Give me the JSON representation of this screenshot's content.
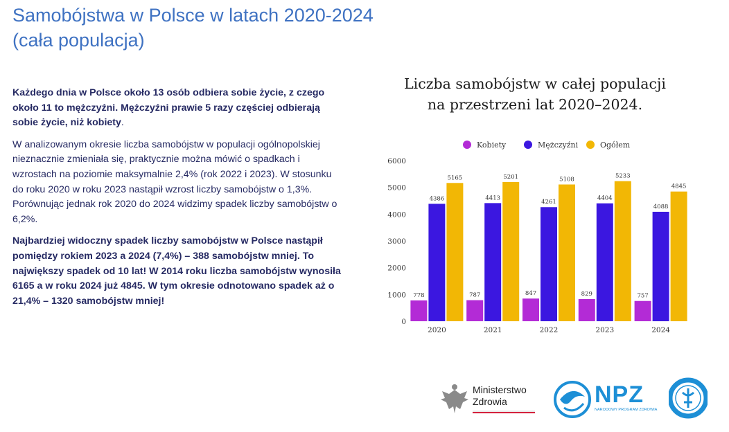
{
  "page": {
    "title_line1": "Samobójstwa w Polsce w latach 2020-2024",
    "title_line2": "(cała populacja)"
  },
  "text": {
    "p1_bold": "Każdego dnia w Polsce około 13 osób odbiera sobie życie, z czego około 11 to mężczyźni. Mężczyźni prawie 5 razy częściej odbierają sobie życie, niż kobiety",
    "p1_end": ".",
    "p2": "W analizowanym okresie liczba samobójstw w populacji ogólnopolskiej nieznacznie zmieniała się, praktycznie można mówić o spadkach i wzrostach na poziomie  maksymalnie 2,4% (rok  2022 i 2023). W stosunku do roku 2020 w roku 2023 nastąpił wzrost liczby samobójstw o 1,3%. Porównując jednak rok 2020 do 2024 widzimy spadek liczby samobójstw o 6,2%.",
    "p3": "Najbardziej widoczny spadek liczby samobójstw w Polsce nastąpił pomiędzy rokiem 2023 a 2024 (7,4%) – 388 samobójstw mniej. To największy spadek od 10 lat! W 2014 roku liczba samobójstw wynosiła 6165 a w roku 2024 już 4845. W tym okresie odnotowano spadek aż o 21,4% – 1320 samobójstw mniej!"
  },
  "chart_data": {
    "type": "bar",
    "title_line1": "Liczba samobójstw w całej populacji",
    "title_line2": "na przestrzeni lat 2020–2024.",
    "categories": [
      "2020",
      "2021",
      "2022",
      "2023",
      "2024"
    ],
    "series": [
      {
        "name": "Kobiety",
        "color": "#b32bd6",
        "values": [
          778,
          787,
          847,
          829,
          757
        ]
      },
      {
        "name": "Mężczyźni",
        "color": "#3b17e0",
        "values": [
          4386,
          4413,
          4261,
          4404,
          4088
        ]
      },
      {
        "name": "Ogółem",
        "color": "#f2b705",
        "values": [
          5165,
          5201,
          5108,
          5233,
          4845
        ]
      }
    ],
    "ylim": [
      0,
      6000
    ],
    "yticks": [
      0,
      1000,
      2000,
      3000,
      4000,
      5000,
      6000
    ],
    "legend_position": "top",
    "grid": false
  },
  "logos": {
    "mz_line1": "Ministerstwo",
    "mz_line2": "Zdrowia",
    "npz": "NPZ",
    "npz_sub": "NARODOWY PROGRAM ZDROWIA",
    "ipin_icon": "ipin-logo-icon",
    "eagle_icon": "eagle-emblem-icon"
  }
}
